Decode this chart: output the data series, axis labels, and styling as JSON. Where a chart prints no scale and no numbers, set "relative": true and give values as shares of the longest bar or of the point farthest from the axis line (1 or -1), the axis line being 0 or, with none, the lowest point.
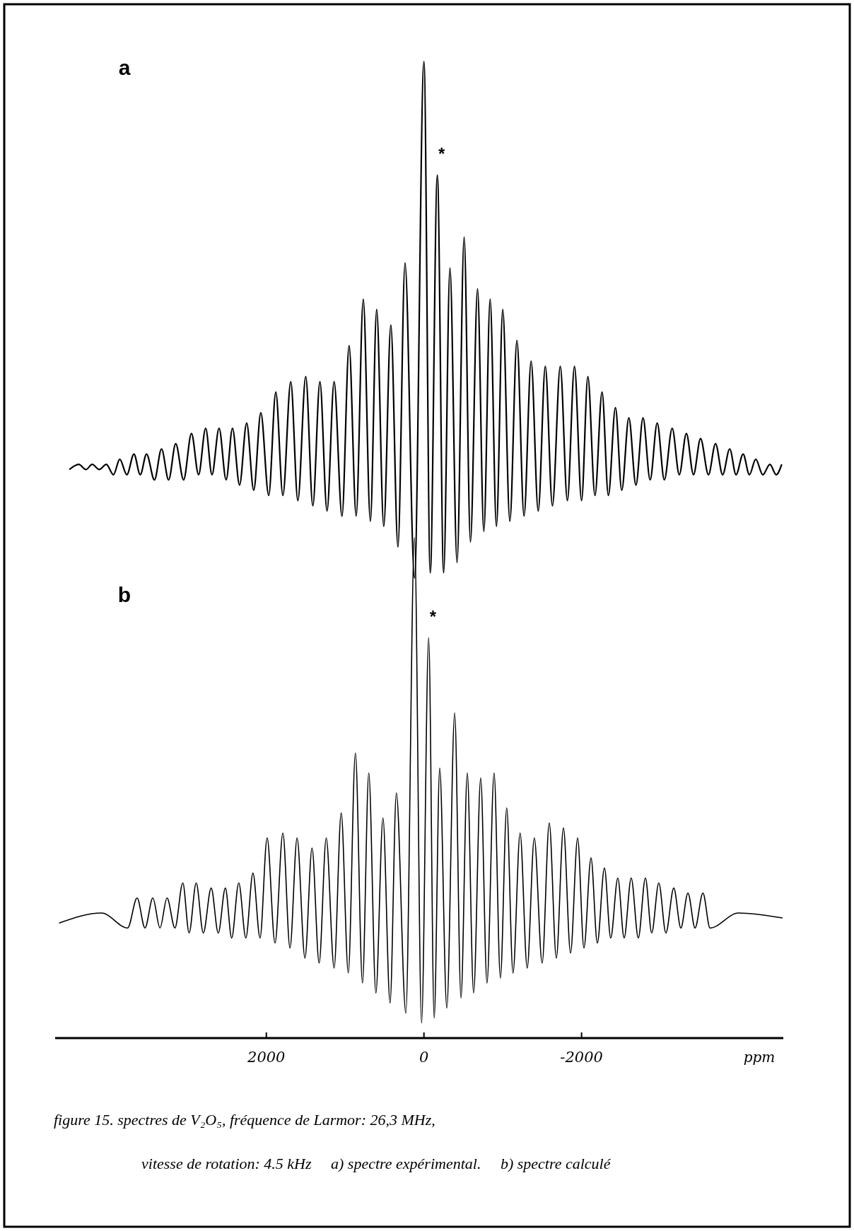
{
  "chart_data": [
    {
      "type": "line",
      "title": "a",
      "relative": true,
      "xlim": [
        5330,
        -5400
      ],
      "xticks": [
        2000,
        0,
        -2000
      ],
      "tick_labels": false,
      "color": "#000000",
      "x": [
        4500,
        4380,
        4290,
        4210,
        4120,
        4030,
        3940,
        3860,
        3770,
        3680,
        3600,
        3520,
        3420,
        3330,
        3240,
        3150,
        3050,
        2950,
        2860,
        2770,
        2690,
        2600,
        2510,
        2430,
        2340,
        2250,
        2160,
        2070,
        1970,
        1880,
        1790,
        1690,
        1600,
        1500,
        1410,
        1320,
        1230,
        1140,
        1040,
        950,
        860,
        770,
        680,
        600,
        510,
        420,
        330,
        240,
        120,
        0,
        -80,
        -170,
        -250,
        -330,
        -420,
        -510,
        -590,
        -680,
        -760,
        -840,
        -920,
        -1000,
        -1090,
        -1180,
        -1270,
        -1360,
        -1450,
        -1540,
        -1630,
        -1730,
        -1820,
        -1910,
        -2000,
        -2080,
        -2170,
        -2260,
        -2340,
        -2430,
        -2510,
        -2600,
        -2690,
        -2780,
        -2870,
        -2960,
        -3050,
        -3150,
        -3240,
        -3330,
        -3420,
        -3510,
        -3610,
        -3700,
        -3790,
        -3880,
        -3960,
        -4050,
        -4130,
        -4210,
        -4300,
        -4390,
        -4470,
        -4540
      ],
      "values": [
        0.21,
        0.22,
        0.21,
        0.22,
        0.21,
        0.22,
        0.2,
        0.23,
        0.2,
        0.24,
        0.2,
        0.24,
        0.19,
        0.25,
        0.19,
        0.26,
        0.19,
        0.28,
        0.2,
        0.29,
        0.2,
        0.29,
        0.19,
        0.29,
        0.18,
        0.3,
        0.17,
        0.32,
        0.16,
        0.36,
        0.16,
        0.38,
        0.15,
        0.39,
        0.14,
        0.38,
        0.13,
        0.38,
        0.12,
        0.45,
        0.12,
        0.54,
        0.11,
        0.52,
        0.1,
        0.49,
        0.06,
        0.61,
        0,
        1,
        0.01,
        0.78,
        0.01,
        0.6,
        0.03,
        0.66,
        0.07,
        0.56,
        0.09,
        0.54,
        0.1,
        0.52,
        0.11,
        0.46,
        0.12,
        0.42,
        0.13,
        0.41,
        0.14,
        0.41,
        0.15,
        0.41,
        0.15,
        0.39,
        0.16,
        0.36,
        0.16,
        0.33,
        0.17,
        0.31,
        0.18,
        0.31,
        0.19,
        0.3,
        0.19,
        0.29,
        0.2,
        0.28,
        0.2,
        0.27,
        0.2,
        0.26,
        0.2,
        0.25,
        0.2,
        0.24,
        0.2,
        0.23,
        0.2,
        0.22,
        0.2,
        0.22
      ],
      "annotations": [
        {
          "text": "*",
          "x": -170,
          "y": 0.78
        }
      ]
    },
    {
      "type": "line",
      "title": "b",
      "relative": true,
      "xlim": [
        4680,
        -4560
      ],
      "xticks": [
        2000,
        0,
        -2000
      ],
      "xlabel": "ppm",
      "color": "#000000",
      "x": [
        4630,
        4090,
        3760,
        3640,
        3540,
        3440,
        3350,
        3260,
        3160,
        3060,
        2980,
        2890,
        2800,
        2700,
        2610,
        2520,
        2440,
        2350,
        2260,
        2170,
        2080,
        1990,
        1890,
        1790,
        1700,
        1610,
        1510,
        1420,
        1330,
        1240,
        1140,
        1050,
        960,
        870,
        780,
        700,
        610,
        520,
        430,
        350,
        230,
        120,
        30,
        -60,
        -130,
        -200,
        -290,
        -390,
        -470,
        -550,
        -630,
        -720,
        -800,
        -890,
        -970,
        -1050,
        -1130,
        -1220,
        -1310,
        -1400,
        -1500,
        -1590,
        -1680,
        -1770,
        -1860,
        -1950,
        -2030,
        -2120,
        -2200,
        -2290,
        -2370,
        -2460,
        -2540,
        -2630,
        -2720,
        -2810,
        -2890,
        -2980,
        -3070,
        -3170,
        -3260,
        -3350,
        -3440,
        -3540,
        -3630,
        -3990,
        -4550
      ],
      "values": [
        0.23,
        0.25,
        0.22,
        0.28,
        0.22,
        0.28,
        0.22,
        0.28,
        0.22,
        0.31,
        0.21,
        0.31,
        0.21,
        0.3,
        0.21,
        0.3,
        0.2,
        0.31,
        0.2,
        0.33,
        0.2,
        0.4,
        0.19,
        0.41,
        0.18,
        0.4,
        0.16,
        0.38,
        0.15,
        0.4,
        0.14,
        0.45,
        0.13,
        0.57,
        0.11,
        0.53,
        0.09,
        0.44,
        0.07,
        0.49,
        0.05,
        1,
        0.03,
        0.8,
        0.04,
        0.54,
        0.06,
        0.65,
        0.08,
        0.53,
        0.09,
        0.52,
        0.11,
        0.53,
        0.12,
        0.46,
        0.13,
        0.41,
        0.14,
        0.4,
        0.15,
        0.43,
        0.16,
        0.42,
        0.17,
        0.4,
        0.18,
        0.36,
        0.19,
        0.34,
        0.2,
        0.32,
        0.2,
        0.32,
        0.2,
        0.32,
        0.21,
        0.31,
        0.21,
        0.3,
        0.22,
        0.29,
        0.22,
        0.29,
        0.22,
        0.25,
        0.24
      ],
      "annotations": [
        {
          "text": "*",
          "x": -60,
          "y": 0.8
        },
        "figure 15. spectres de V₂O₅, fréquence de Larmor: 26,3 MHz,",
        "vitesse de rotation: 4.5 kHz     a) spectre expérimental.     b) spectre calculé"
      ]
    }
  ]
}
